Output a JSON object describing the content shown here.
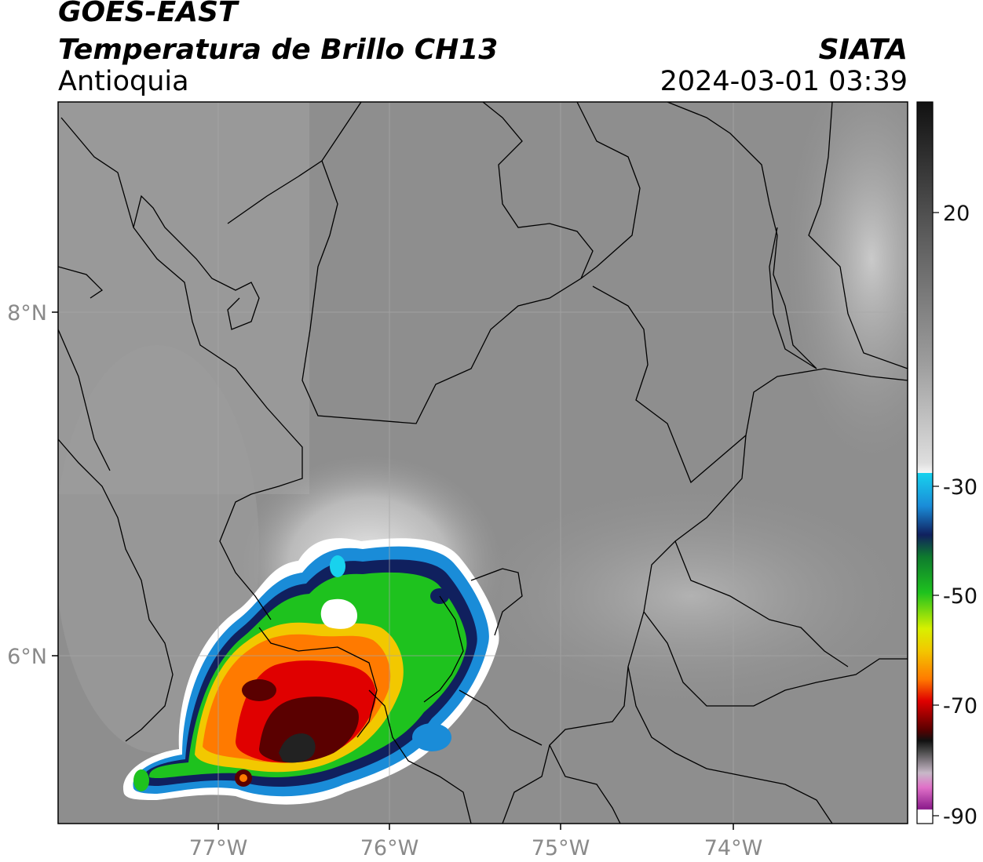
{
  "header": {
    "satellite": "GOES-EAST",
    "product": "Temperatura de Brillo CH13",
    "region": "Antioquia",
    "organization": "SIATA",
    "datetime": "2024-03-01 03:39"
  },
  "map": {
    "longitude_ticks": [
      "77°W",
      "76°W",
      "75°W",
      "74°W"
    ],
    "latitude_ticks": [
      "8°N",
      "6°N"
    ],
    "gridlines": true
  },
  "colorbar": {
    "ticks": [
      "20",
      "-30",
      "-50",
      "-70",
      "-90"
    ],
    "colors": {
      "black": "#111111",
      "gray": "#8f8f8f",
      "white": "#f4f4f4",
      "cyan": "#18d2ee",
      "blue": "#0a4aa8",
      "navy": "#10205e",
      "green": "#1ec21e",
      "yellow": "#f2f200",
      "orange": "#ff8a00",
      "red": "#e00000",
      "darkred": "#5a0000",
      "magenta": "#d85cc6",
      "purple": "#8a1a8a"
    }
  }
}
